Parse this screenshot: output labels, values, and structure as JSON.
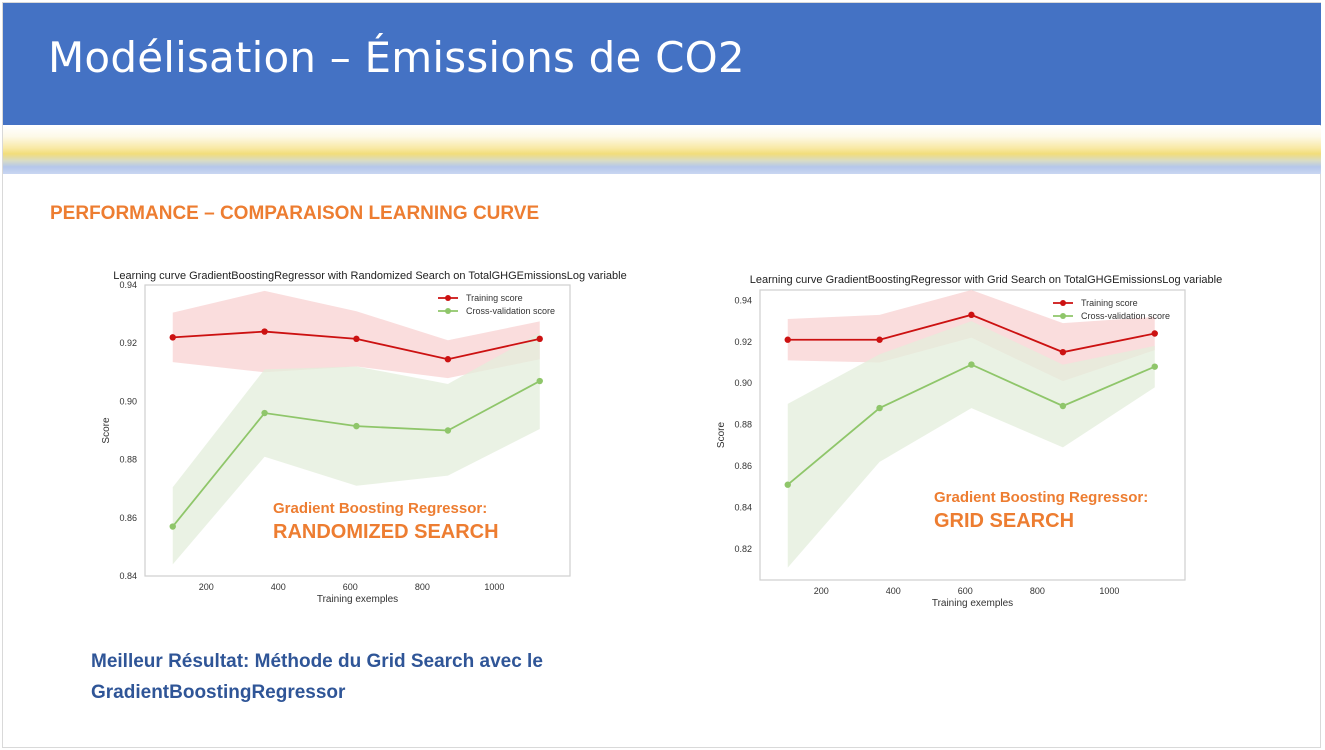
{
  "slide": {
    "title": "Modélisation – Émissions de CO2",
    "section_title": "PERFORMANCE – COMPARAISON LEARNING CURVE",
    "conclusion_line1": "Meilleur Résultat: Méthode du Grid Search avec le",
    "conclusion_line2": "GradientBoostingRegressor"
  },
  "colors": {
    "title_bar": "#4472c4",
    "accent_orange": "#ed7d31",
    "conclusion_blue": "#2f5597",
    "training": "#cc1111",
    "training_band": "#f9d7d7",
    "cv": "#8fc66a",
    "cv_band": "#e3eedb"
  },
  "overlays": [
    {
      "line1": "Gradient Boosting Regressor:",
      "line2": "RANDOMIZED SEARCH"
    },
    {
      "line1": "Gradient Boosting Regressor:",
      "line2": "GRID SEARCH"
    }
  ],
  "chart_data": [
    {
      "type": "line",
      "title": "Learning curve GradientBoostingRegressor with Randomized Search on TotalGHGEmissionsLog variable",
      "xlabel": "Training exemples",
      "ylabel": "Score",
      "xlim": [
        30,
        1210
      ],
      "ylim": [
        0.84,
        0.94
      ],
      "xticks": [
        200,
        400,
        600,
        800,
        1000
      ],
      "yticks": [
        0.84,
        0.86,
        0.88,
        0.9,
        0.92,
        0.94
      ],
      "xtick_labels": [
        "200",
        "400",
        "600",
        "800",
        "1000"
      ],
      "ytick_labels": [
        "0.84",
        "0.86",
        "0.88",
        "0.90",
        "0.92",
        "0.94"
      ],
      "grid": false,
      "legend_position": "top-right",
      "x": [
        107,
        362,
        617,
        871,
        1126
      ],
      "series": [
        {
          "name": "Training score",
          "values": [
            0.922,
            0.924,
            0.9215,
            0.9145,
            0.9215
          ],
          "lower": [
            0.9135,
            0.91,
            0.912,
            0.908,
            0.9145
          ],
          "upper": [
            0.9305,
            0.938,
            0.931,
            0.921,
            0.9275
          ]
        },
        {
          "name": "Cross-validation score",
          "values": [
            0.857,
            0.896,
            0.8915,
            0.89,
            0.907
          ],
          "lower": [
            0.844,
            0.881,
            0.871,
            0.8745,
            0.8905
          ],
          "upper": [
            0.8705,
            0.911,
            0.912,
            0.906,
            0.9235
          ]
        }
      ]
    },
    {
      "type": "line",
      "title": "Learning curve GradientBoostingRegressor with Grid Search on TotalGHGEmissionsLog variable",
      "xlabel": "Training exemples",
      "ylabel": "Score",
      "xlim": [
        30,
        1210
      ],
      "ylim": [
        0.805,
        0.945
      ],
      "xticks": [
        200,
        400,
        600,
        800,
        1000
      ],
      "yticks": [
        0.82,
        0.84,
        0.86,
        0.88,
        0.9,
        0.92,
        0.94
      ],
      "xtick_labels": [
        "200",
        "400",
        "600",
        "800",
        "1000"
      ],
      "ytick_labels": [
        "0.82",
        "0.84",
        "0.86",
        "0.88",
        "0.90",
        "0.92",
        "0.94"
      ],
      "grid": false,
      "legend_position": "top-right",
      "x": [
        107,
        362,
        617,
        871,
        1126
      ],
      "series": [
        {
          "name": "Training score",
          "values": [
            0.921,
            0.921,
            0.933,
            0.915,
            0.924
          ],
          "lower": [
            0.911,
            0.91,
            0.922,
            0.901,
            0.916
          ],
          "upper": [
            0.931,
            0.933,
            0.945,
            0.929,
            0.932
          ]
        },
        {
          "name": "Cross-validation score",
          "values": [
            0.851,
            0.888,
            0.909,
            0.889,
            0.908
          ],
          "lower": [
            0.811,
            0.862,
            0.888,
            0.869,
            0.898
          ],
          "upper": [
            0.89,
            0.914,
            0.93,
            0.909,
            0.918
          ]
        }
      ]
    }
  ]
}
